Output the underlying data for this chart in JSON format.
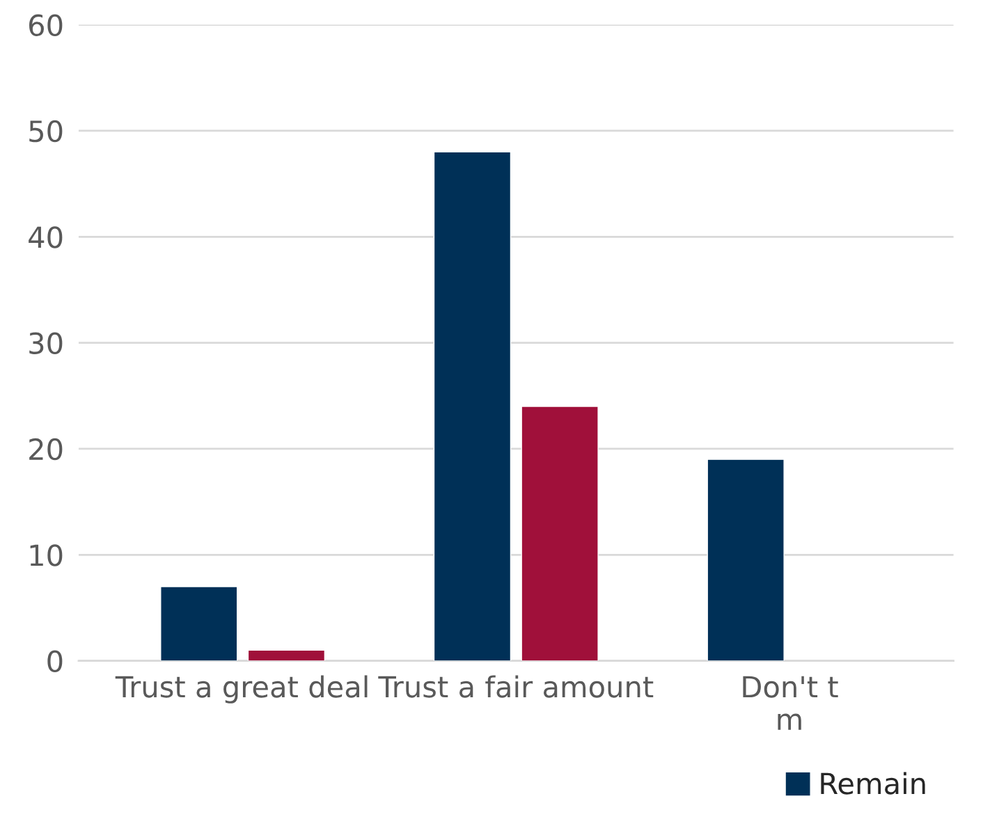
{
  "chart_data": {
    "type": "bar",
    "categories": [
      "Trust a great deal",
      "Trust a fair amount",
      "Don't t\nm"
    ],
    "series": [
      {
        "name": "Remain",
        "color": "#003057",
        "values": [
          7,
          48,
          19
        ]
      },
      {
        "color": "#a0103a",
        "values": [
          1,
          24,
          null
        ]
      }
    ],
    "ylim": [
      0,
      60
    ],
    "yticks": [
      0,
      10,
      20,
      30,
      40,
      50,
      60
    ],
    "grid": "y",
    "legend": "bottom right"
  }
}
